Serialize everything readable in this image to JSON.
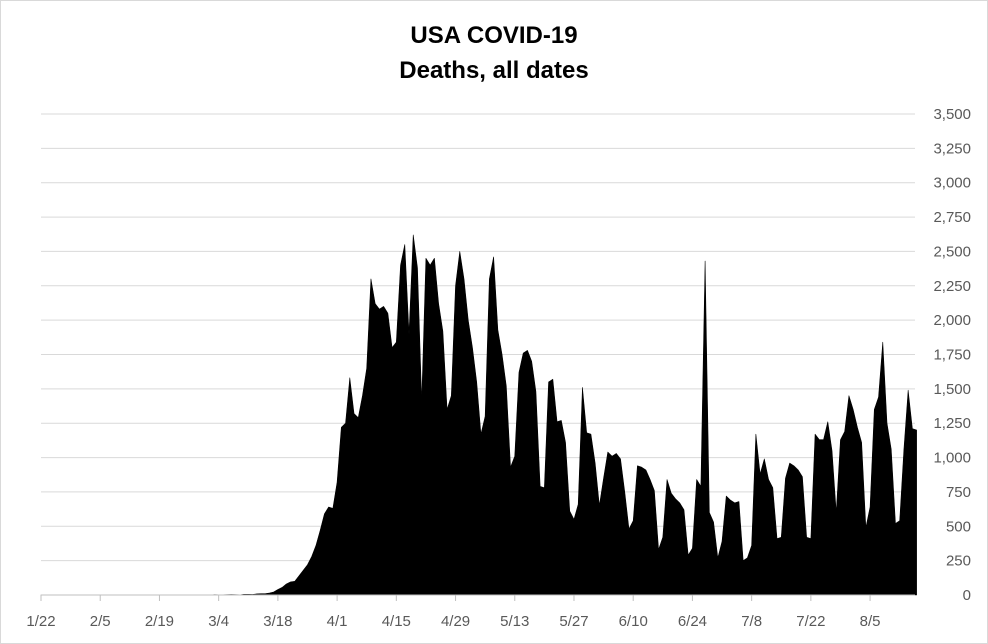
{
  "chart_data": {
    "type": "area",
    "title": "USA COVID-19",
    "subtitle": "Deaths, all dates",
    "xlabel": "",
    "ylabel": "",
    "ylim": [
      0,
      3500
    ],
    "y_ticks": [
      "0",
      "250",
      "500",
      "750",
      "1,000",
      "1,250",
      "1,500",
      "1,750",
      "2,000",
      "2,250",
      "2,500",
      "2,750",
      "3,000",
      "3,250",
      "3,500"
    ],
    "x_ticks": [
      "1/22",
      "2/5",
      "2/19",
      "3/4",
      "3/18",
      "4/1",
      "4/15",
      "4/29",
      "5/13",
      "5/27",
      "6/10",
      "6/24",
      "7/8",
      "7/22",
      "8/5"
    ],
    "y_axis_position": "right",
    "grid": true,
    "legend": "none",
    "fill_color": "#000000",
    "series": [
      {
        "start_date": "1/22",
        "values": [
          0,
          0,
          0,
          0,
          0,
          0,
          0,
          0,
          0,
          0,
          0,
          0,
          0,
          0,
          0,
          0,
          0,
          0,
          0,
          0,
          0,
          0,
          0,
          0,
          0,
          0,
          0,
          0,
          0,
          0,
          0,
          0,
          0,
          0,
          0,
          0,
          0,
          0,
          0,
          1,
          0,
          2,
          1,
          1,
          2,
          3,
          2,
          1,
          5,
          5,
          4,
          8,
          10,
          10,
          14,
          22,
          40,
          55,
          80,
          95,
          100,
          140,
          180,
          220,
          280,
          360,
          470,
          590,
          640,
          630,
          820,
          1220,
          1250,
          1580,
          1320,
          1290,
          1450,
          1650,
          2300,
          2120,
          2080,
          2100,
          2050,
          1800,
          1840,
          2400,
          2550,
          1900,
          2620,
          2380,
          1410,
          2450,
          2400,
          2450,
          2120,
          1920,
          1350,
          1450,
          2250,
          2500,
          2300,
          2000,
          1800,
          1550,
          1170,
          1300,
          2300,
          2460,
          1930,
          1750,
          1520,
          930,
          1010,
          1620,
          1760,
          1780,
          1700,
          1480,
          790,
          780,
          1550,
          1570,
          1260,
          1270,
          1110,
          610,
          550,
          660,
          1510,
          1180,
          1170,
          960,
          650,
          850,
          1040,
          1010,
          1030,
          990,
          750,
          480,
          540,
          940,
          930,
          910,
          840,
          760,
          330,
          420,
          840,
          740,
          700,
          670,
          620,
          290,
          340,
          840,
          790,
          2430,
          600,
          530,
          270,
          390,
          720,
          690,
          670,
          680,
          250,
          270,
          360,
          1170,
          880,
          990,
          840,
          780,
          410,
          420,
          850,
          960,
          940,
          910,
          860,
          420,
          410,
          1170,
          1130,
          1130,
          1260,
          1050,
          600,
          1130,
          1190,
          1450,
          1350,
          1220,
          1110,
          490,
          640,
          1350,
          1440,
          1840,
          1250,
          1060,
          520,
          540,
          1060,
          1490,
          1210,
          1200
        ]
      }
    ]
  }
}
